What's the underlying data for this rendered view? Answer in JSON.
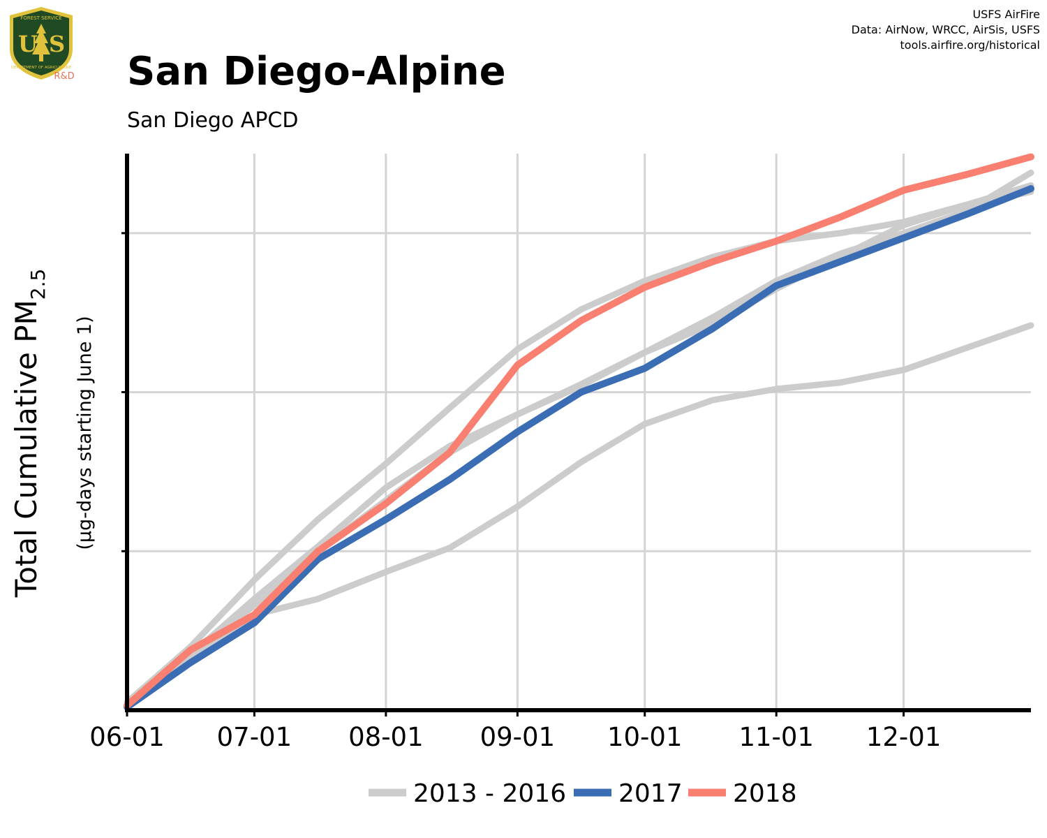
{
  "logo": {
    "top_text": "FOREST SERVICE",
    "letters": "US",
    "bottom_text": "DEPARTMENT OF AGRICULTURE",
    "tag": "R&D",
    "colors": {
      "shield_green": "#1f4a23",
      "gold": "#e0c23c",
      "tree": "#e0c23c",
      "tag": "#e8735a"
    }
  },
  "credits": {
    "line1": "USFS AirFire",
    "line2": "Data: AirNow, WRCC, AirSis, USFS",
    "line3": "tools.airfire.org/historical"
  },
  "title": "San Diego-Alpine",
  "subtitle": "San Diego APCD",
  "chart_data": {
    "type": "line",
    "ylabel_main": "Total Cumulative PM",
    "ylabel_sub": "2.5",
    "ylabel_units": "(µg-days starting June 1)",
    "x_tick_labels": [
      "06-01",
      "07-01",
      "08-01",
      "09-01",
      "10-01",
      "11-01",
      "12-01"
    ],
    "x_tick_days": [
      0,
      30,
      61,
      92,
      122,
      153,
      183
    ],
    "xlim_days": [
      0,
      213
    ],
    "ylim": [
      0,
      3.5
    ],
    "y_gridlines": [
      1,
      2,
      3
    ],
    "y_tick_labels_shown": false,
    "grid": true,
    "legend_position": "bottom",
    "legend": [
      {
        "label": "2013 - 2016",
        "color": "#cccccc"
      },
      {
        "label": "2017",
        "color": "#3a6db3"
      },
      {
        "label": "2018",
        "color": "#f98070"
      }
    ],
    "series": [
      {
        "group": "2013 - 2016",
        "color": "#cccccc",
        "x": [
          0,
          15,
          30,
          45,
          61,
          76,
          92,
          107,
          122,
          138,
          153,
          168,
          183,
          198,
          213
        ],
        "y": [
          0.05,
          0.4,
          0.82,
          1.2,
          1.55,
          1.9,
          2.27,
          2.52,
          2.7,
          2.85,
          2.95,
          3.0,
          3.07,
          3.18,
          3.26
        ]
      },
      {
        "group": "2013 - 2016",
        "color": "#cccccc",
        "x": [
          0,
          15,
          30,
          45,
          61,
          76,
          92,
          107,
          122,
          138,
          153,
          168,
          183,
          198,
          213
        ],
        "y": [
          0.03,
          0.35,
          0.7,
          1.03,
          1.4,
          1.66,
          1.86,
          2.04,
          2.25,
          2.43,
          2.65,
          2.85,
          3.05,
          3.18,
          3.3
        ]
      },
      {
        "group": "2013 - 2016",
        "color": "#cccccc",
        "x": [
          0,
          15,
          30,
          45,
          61,
          76,
          92,
          107,
          122,
          138,
          153,
          168,
          183,
          198,
          213
        ],
        "y": [
          0.02,
          0.33,
          0.66,
          1.0,
          1.32,
          1.62,
          1.86,
          2.05,
          2.25,
          2.47,
          2.7,
          2.87,
          3.0,
          3.14,
          3.38
        ]
      },
      {
        "group": "2013 - 2016",
        "color": "#cccccc",
        "x": [
          0,
          15,
          30,
          45,
          61,
          76,
          92,
          107,
          122,
          138,
          153,
          168,
          183,
          198,
          213
        ],
        "y": [
          0.02,
          0.3,
          0.6,
          0.7,
          0.87,
          1.02,
          1.28,
          1.56,
          1.8,
          1.95,
          2.02,
          2.06,
          2.14,
          2.28,
          2.42
        ]
      },
      {
        "group": "2017",
        "color": "#3a6db3",
        "x": [
          0,
          15,
          30,
          45,
          61,
          76,
          92,
          107,
          122,
          138,
          153,
          168,
          183,
          198,
          213
        ],
        "y": [
          0.02,
          0.3,
          0.55,
          0.95,
          1.2,
          1.45,
          1.75,
          2.0,
          2.15,
          2.4,
          2.67,
          2.82,
          2.97,
          3.12,
          3.28
        ]
      },
      {
        "group": "2018",
        "color": "#f98070",
        "x": [
          0,
          15,
          30,
          45,
          61,
          76,
          92,
          107,
          122,
          138,
          153,
          168,
          183,
          198,
          213
        ],
        "y": [
          0.03,
          0.38,
          0.6,
          1.0,
          1.3,
          1.62,
          2.17,
          2.45,
          2.66,
          2.82,
          2.95,
          3.1,
          3.27,
          3.37,
          3.48
        ]
      }
    ]
  }
}
